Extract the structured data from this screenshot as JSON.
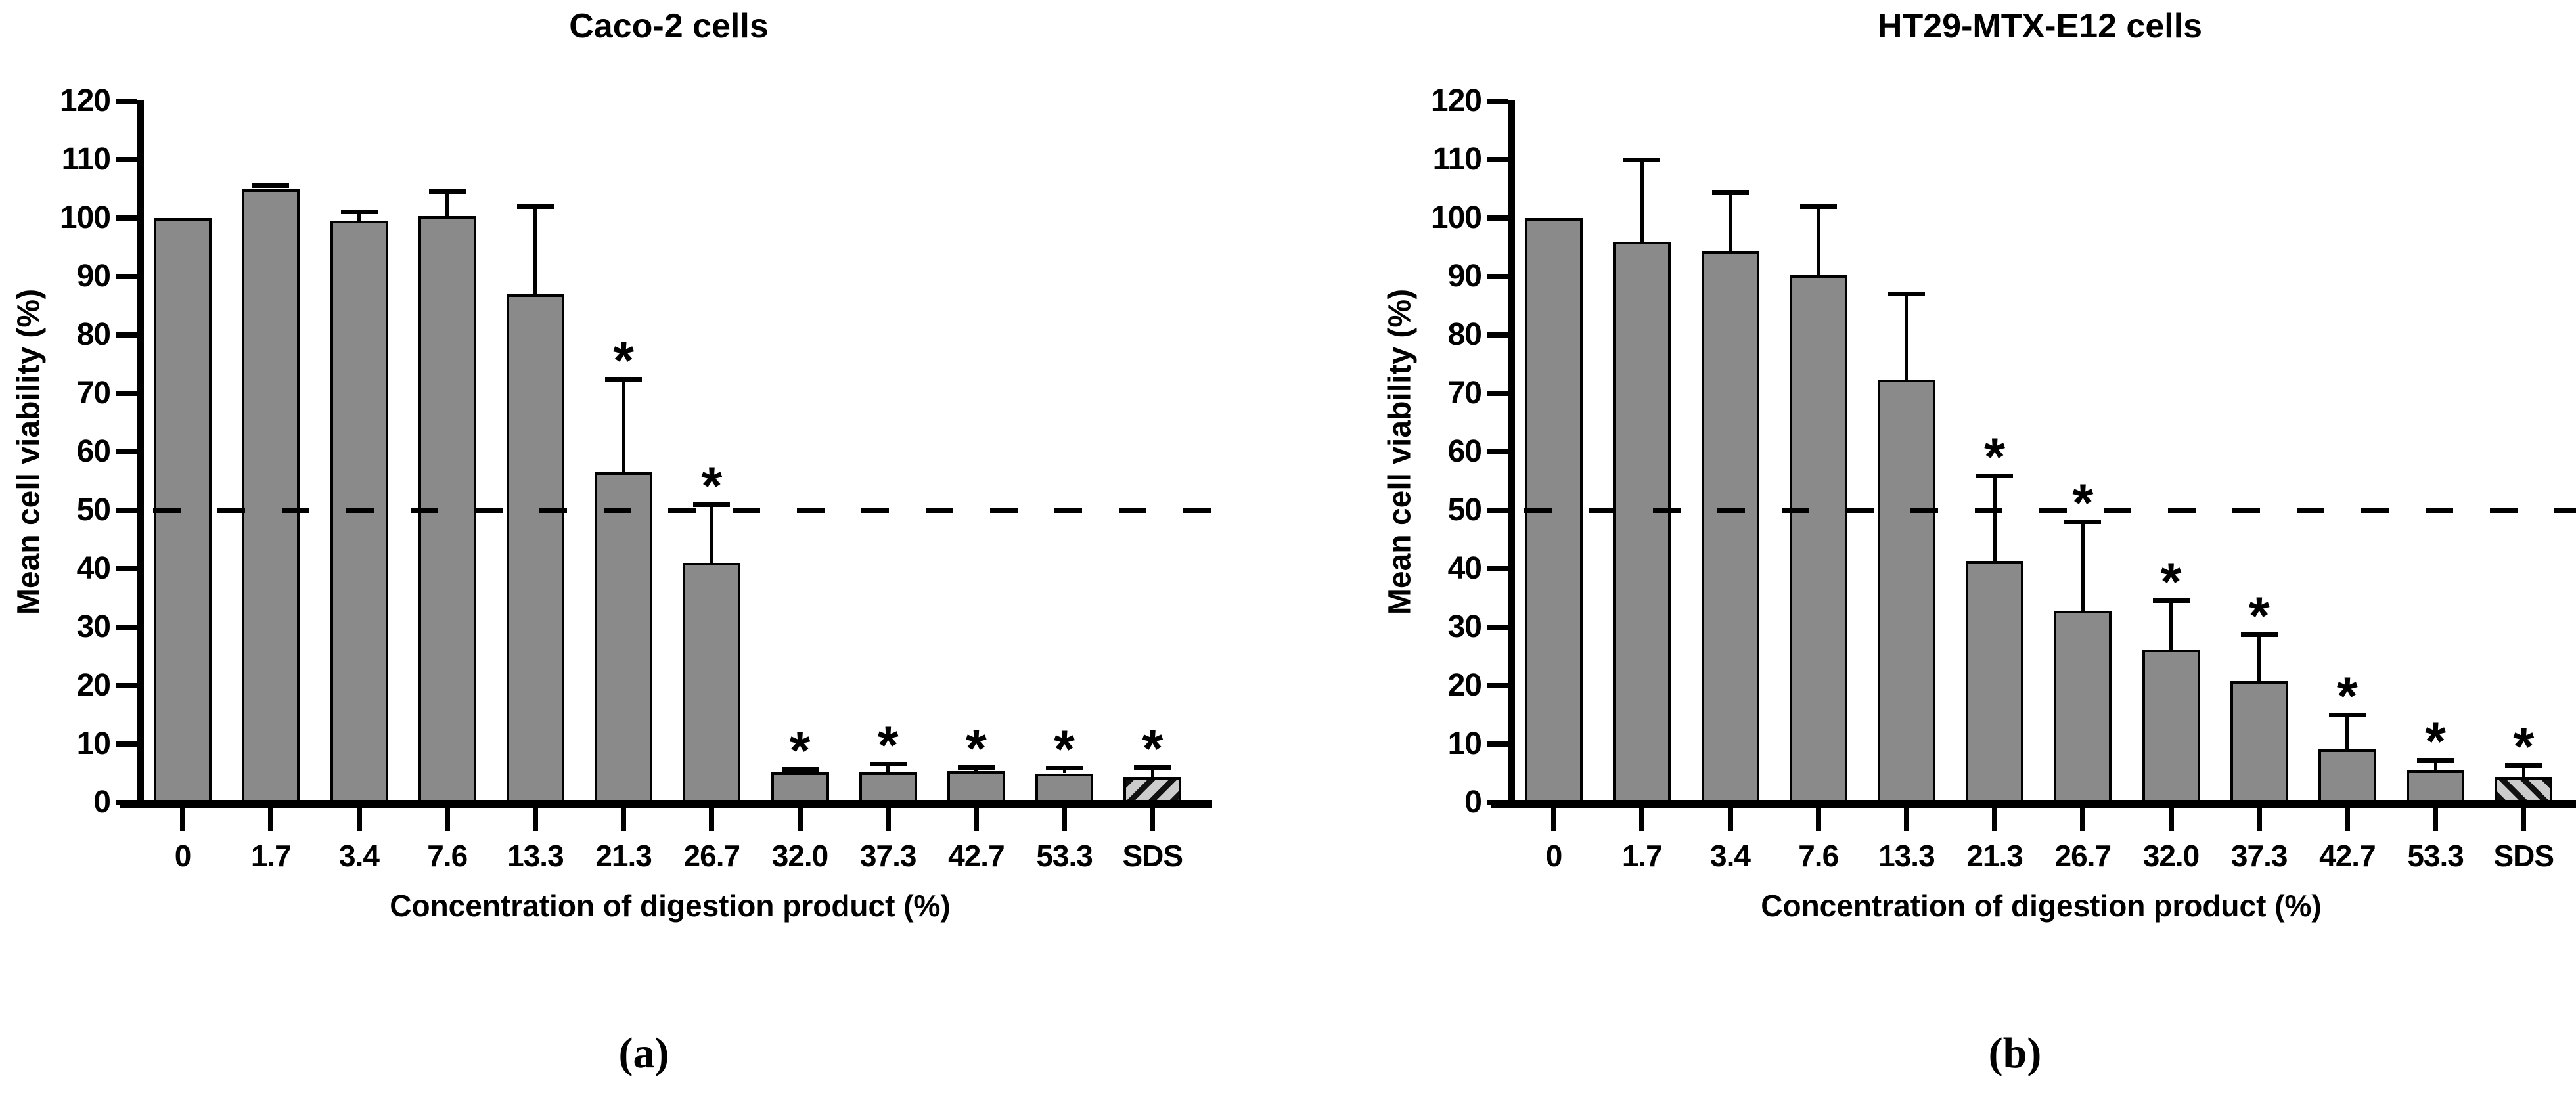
{
  "chart_data": [
    {
      "type": "bar",
      "panel": "a",
      "caption": "(a)",
      "title": "Caco-2 cells",
      "xlabel": "Concentration of digestion product (%)",
      "ylabel": "Mean cell viability (%)",
      "ylim": [
        0,
        120
      ],
      "ytick_step": 10,
      "yticks": [
        0,
        10,
        20,
        30,
        40,
        50,
        60,
        70,
        80,
        90,
        100,
        110,
        120
      ],
      "categories": [
        "0",
        "1.7",
        "3.4",
        "7.6",
        "13.3",
        "21.3",
        "26.7",
        "32.0",
        "37.3",
        "42.7",
        "53.3",
        "SDS"
      ],
      "values": [
        100,
        105,
        99.5,
        100.3,
        87,
        56.5,
        41,
        5.2,
        5.2,
        5.4,
        5,
        4.4
      ],
      "errors_upper": [
        0,
        0.6,
        1.6,
        4.3,
        15,
        16,
        10,
        0.5,
        1.4,
        0.7,
        1,
        1.7
      ],
      "significance": [
        "",
        "",
        "",
        "",
        "",
        "*",
        "*",
        "*",
        "*",
        "*",
        "*",
        "*"
      ],
      "reference_line_y": 50,
      "reference_line_style": "dashed",
      "hatched_category": "SDS",
      "hatch_direction": "/",
      "bar_color": "#8a8a8a",
      "hatch_bg_color": "#cccccc",
      "hatch_stripe_color": "#111111",
      "axis_color": "#000000",
      "grid": false,
      "legend_position": "none"
    },
    {
      "type": "bar",
      "panel": "b",
      "caption": "(b)",
      "title": "HT29-MTX-E12 cells",
      "xlabel": "Concentration of digestion product (%)",
      "ylabel": "Mean cell viability (%)",
      "ylim": [
        0,
        120
      ],
      "ytick_step": 10,
      "yticks": [
        0,
        10,
        20,
        30,
        40,
        50,
        60,
        70,
        80,
        90,
        100,
        110,
        120
      ],
      "categories": [
        "0",
        "1.7",
        "3.4",
        "7.6",
        "13.3",
        "21.3",
        "26.7",
        "32.0",
        "37.3",
        "42.7",
        "53.3",
        "SDS"
      ],
      "values": [
        100,
        96,
        94.4,
        90.2,
        72.4,
        41.3,
        32.8,
        26.2,
        20.8,
        9.1,
        5.5,
        4.4
      ],
      "errors_upper": [
        0,
        14,
        10,
        11.8,
        14.7,
        14.6,
        15.3,
        8.4,
        8,
        6,
        1.8,
        2
      ],
      "significance": [
        "",
        "",
        "",
        "",
        "",
        "*",
        "*",
        "*",
        "*",
        "*",
        "*",
        "*"
      ],
      "reference_line_y": 50,
      "reference_line_style": "dashed",
      "hatched_category": "SDS",
      "hatch_direction": "\\",
      "bar_color": "#8a8a8a",
      "hatch_bg_color": "#cccccc",
      "hatch_stripe_color": "#111111",
      "axis_color": "#000000",
      "grid": false,
      "legend_position": "none"
    }
  ]
}
